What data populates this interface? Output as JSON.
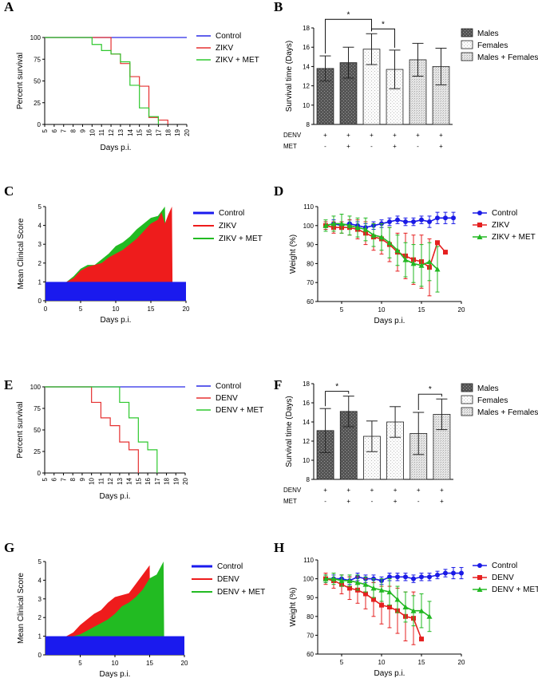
{
  "chart_data": [
    {
      "id": "A",
      "panel_label": "A",
      "type": "line",
      "step": true,
      "xlabel": "Days p.i.",
      "ylabel": "Percent survival",
      "xlim": [
        5,
        20
      ],
      "ylim": [
        0,
        100
      ],
      "xticks": [
        "5",
        "6",
        "7",
        "8",
        "9",
        "10",
        "11",
        "12",
        "13",
        "14",
        "15",
        "16",
        "17",
        "18",
        "19",
        "20"
      ],
      "yticks": [
        "0",
        "25",
        "50",
        "75",
        "100"
      ],
      "legend": "top-right",
      "series": [
        {
          "name": "Control",
          "color": "#2a2ae6",
          "marker": "none",
          "x": [
            5,
            20
          ],
          "y": [
            100,
            100
          ]
        },
        {
          "name": "ZIKV",
          "color": "#e53030",
          "marker": "none",
          "x": [
            5,
            12,
            13,
            14,
            15,
            16,
            17,
            18
          ],
          "y": [
            100,
            81,
            70,
            55,
            44,
            8,
            5,
            0
          ]
        },
        {
          "name": "ZIKV + MET",
          "color": "#2ec82e",
          "marker": "none",
          "x": [
            5,
            10,
            11,
            12,
            13,
            14,
            15,
            16,
            17
          ],
          "y": [
            100,
            92,
            85,
            81,
            72,
            45,
            19,
            9,
            0
          ]
        }
      ]
    },
    {
      "id": "B",
      "panel_label": "B",
      "type": "bar",
      "ylabel": "Survival time (Days)",
      "ylim": [
        8,
        18
      ],
      "yticks": [
        "8",
        "10",
        "12",
        "14",
        "16",
        "18"
      ],
      "values": [
        13.8,
        14.4,
        15.8,
        13.7,
        14.7,
        14.0
      ],
      "errors": [
        1.3,
        1.6,
        1.6,
        2.0,
        1.7,
        1.9
      ],
      "styles": [
        "males",
        "males",
        "females",
        "females",
        "both",
        "both"
      ],
      "legend": "top-right",
      "legend_items": [
        {
          "name": "Males",
          "style": "males"
        },
        {
          "name": "Females",
          "style": "females"
        },
        {
          "name": "Males + Females",
          "style": "both"
        }
      ],
      "table_rows": [
        {
          "label": "DENV",
          "values": [
            "+",
            "+",
            "+",
            "+",
            "+",
            "+"
          ]
        },
        {
          "label": "MET",
          "values": [
            "-",
            "+",
            "-",
            "+",
            "-",
            "+"
          ]
        }
      ],
      "significance": [
        {
          "from": 0,
          "to": 2,
          "label": "*",
          "level": 1
        },
        {
          "from": 2,
          "to": 3,
          "label": "*",
          "level": 0
        }
      ]
    },
    {
      "id": "C",
      "panel_label": "C",
      "type": "area",
      "xlabel": "Days p.i.",
      "ylabel": "Mean Clinical Score",
      "xlim": [
        0,
        20
      ],
      "ylim": [
        0,
        5
      ],
      "xticks": [
        "0",
        "5",
        "10",
        "15",
        "20"
      ],
      "yticks": [
        "0",
        "1",
        "2",
        "3",
        "4",
        "5"
      ],
      "legend": "top-right",
      "series": [
        {
          "name": "ZIKV + MET",
          "color": "#22bb22",
          "x": [
            3,
            4,
            5,
            6,
            7,
            8,
            9,
            10,
            11,
            12,
            13,
            14,
            15,
            16,
            17,
            17.3
          ],
          "y": [
            1,
            1.3,
            1.7,
            1.9,
            1.9,
            2.2,
            2.5,
            2.9,
            3.1,
            3.4,
            3.8,
            4.1,
            4.4,
            4.5,
            5,
            0
          ]
        },
        {
          "name": "ZIKV",
          "color": "#ee1c1c",
          "x": [
            3,
            4,
            5,
            6,
            7,
            8,
            9,
            10,
            11,
            12,
            13,
            14,
            15,
            16,
            16.5,
            17,
            17.5,
            18,
            18.1
          ],
          "y": [
            1,
            1.2,
            1.6,
            1.8,
            1.9,
            2.0,
            2.3,
            2.5,
            2.7,
            3.0,
            3.3,
            3.7,
            4.1,
            4.3,
            4.7,
            4.1,
            4.6,
            5,
            0
          ]
        },
        {
          "name": "Control",
          "color": "#1a1aee",
          "x": [
            0,
            20
          ],
          "y": [
            1,
            1
          ]
        }
      ]
    },
    {
      "id": "D",
      "panel_label": "D",
      "type": "line",
      "xlabel": "Days p.i.",
      "ylabel": "Weight (%)",
      "xlim": [
        2,
        20
      ],
      "ylim": [
        60,
        110
      ],
      "xticks": [
        "5",
        "10",
        "15",
        "20"
      ],
      "yticks": [
        "60",
        "70",
        "80",
        "90",
        "100",
        "110"
      ],
      "legend": "top-right",
      "series": [
        {
          "name": "Control",
          "color": "#1a1ae6",
          "marker": "circle",
          "x": [
            3,
            4,
            5,
            6,
            7,
            8,
            9,
            10,
            11,
            12,
            13,
            14,
            15,
            16,
            17,
            18,
            19
          ],
          "y": [
            100,
            101,
            100,
            101,
            100,
            99,
            100,
            101,
            102,
            103,
            102,
            102,
            103,
            102,
            104,
            104,
            104
          ],
          "err": [
            2,
            2,
            2,
            2,
            2,
            2,
            2,
            2,
            2,
            2,
            2,
            2,
            2,
            3,
            3,
            3,
            3
          ]
        },
        {
          "name": "ZIKV",
          "color": "#e52020",
          "marker": "square",
          "x": [
            3,
            4,
            5,
            6,
            7,
            8,
            9,
            10,
            11,
            12,
            13,
            14,
            15,
            16,
            17,
            18
          ],
          "y": [
            100,
            99,
            99,
            99,
            98,
            96,
            94,
            93,
            90,
            86,
            84,
            82,
            81,
            78,
            91,
            86
          ],
          "err": [
            2,
            3,
            3,
            4,
            5,
            6,
            7,
            8,
            9,
            10,
            12,
            13,
            14,
            15,
            0,
            0
          ]
        },
        {
          "name": "ZIKV + MET",
          "color": "#22b822",
          "marker": "triangle",
          "x": [
            3,
            4,
            5,
            6,
            7,
            8,
            9,
            10,
            11,
            12,
            13,
            14,
            15,
            16,
            17
          ],
          "y": [
            100,
            101,
            101,
            100,
            99,
            98,
            95,
            94,
            91,
            87,
            82,
            80,
            79,
            81,
            77
          ],
          "err": [
            3,
            4,
            5,
            5,
            5,
            6,
            6,
            7,
            8,
            8,
            9,
            10,
            11,
            10,
            12
          ]
        }
      ]
    },
    {
      "id": "E",
      "panel_label": "E",
      "type": "line",
      "step": true,
      "xlabel": "Days p.i.",
      "ylabel": "Percent survival",
      "xlim": [
        5,
        20
      ],
      "ylim": [
        0,
        100
      ],
      "xticks": [
        "5",
        "6",
        "7",
        "8",
        "9",
        "10",
        "11",
        "12",
        "13",
        "14",
        "15",
        "16",
        "17",
        "18",
        "19",
        "20"
      ],
      "yticks": [
        "0",
        "25",
        "50",
        "75",
        "100"
      ],
      "legend": "top-right",
      "series": [
        {
          "name": "Control",
          "color": "#2a2ae6",
          "marker": "none",
          "x": [
            5,
            20
          ],
          "y": [
            100,
            100
          ]
        },
        {
          "name": "DENV",
          "color": "#e53030",
          "marker": "none",
          "x": [
            5,
            10,
            11,
            12,
            13,
            14,
            15
          ],
          "y": [
            100,
            82,
            64,
            55,
            36,
            27,
            0
          ]
        },
        {
          "name": "DENV + MET",
          "color": "#2ec82e",
          "marker": "none",
          "x": [
            5,
            13,
            14,
            15,
            16,
            17
          ],
          "y": [
            100,
            82,
            64,
            36,
            27,
            0
          ]
        }
      ]
    },
    {
      "id": "F",
      "panel_label": "F",
      "type": "bar",
      "ylabel": "Survival time (Days)",
      "ylim": [
        8,
        18
      ],
      "yticks": [
        "8",
        "10",
        "12",
        "14",
        "16",
        "18"
      ],
      "values": [
        13.1,
        15.1,
        12.5,
        14.0,
        12.8,
        14.8
      ],
      "errors": [
        2.3,
        1.6,
        1.6,
        1.6,
        2.2,
        1.6
      ],
      "styles": [
        "males",
        "males",
        "females",
        "females",
        "both",
        "both"
      ],
      "legend": "top-right",
      "legend_items": [
        {
          "name": "Males",
          "style": "males"
        },
        {
          "name": "Females",
          "style": "females"
        },
        {
          "name": "Males + Females",
          "style": "both"
        }
      ],
      "table_rows": [
        {
          "label": "DENV",
          "values": [
            "+",
            "+",
            "+",
            "+",
            "+",
            "+"
          ]
        },
        {
          "label": "MET",
          "values": [
            "-",
            "+",
            "-",
            "+",
            "-",
            "+"
          ]
        }
      ],
      "significance": [
        {
          "from": 0,
          "to": 1,
          "label": "*",
          "level": 0
        },
        {
          "from": 4,
          "to": 5,
          "label": "*",
          "level": 0
        }
      ]
    },
    {
      "id": "G",
      "panel_label": "G",
      "type": "area",
      "xlabel": "Days p.i.",
      "ylabel": "Mean Clinical Score",
      "xlim": [
        0,
        20
      ],
      "ylim": [
        0,
        5
      ],
      "xticks": [
        "5",
        "10",
        "15",
        "20"
      ],
      "yticks": [
        "0",
        "1",
        "2",
        "3",
        "4",
        "5"
      ],
      "legend": "top-right",
      "series": [
        {
          "name": "DENV",
          "color": "#ee1c1c",
          "x": [
            3,
            4,
            5,
            6,
            7,
            8,
            9,
            10,
            11,
            12,
            13,
            14,
            15,
            15.1
          ],
          "y": [
            1,
            1.2,
            1.6,
            1.9,
            2.2,
            2.4,
            2.8,
            3.1,
            3.2,
            3.3,
            3.8,
            4.3,
            4.8,
            0
          ]
        },
        {
          "name": "DENV + MET",
          "color": "#22bb22",
          "x": [
            4,
            5,
            6,
            7,
            8,
            9,
            10,
            11,
            12,
            13,
            14,
            15,
            16,
            17,
            17.1
          ],
          "y": [
            1,
            1.1,
            1.3,
            1.5,
            1.7,
            1.9,
            2.2,
            2.6,
            2.8,
            3.1,
            3.5,
            4.1,
            4.3,
            5,
            0
          ]
        },
        {
          "name": "Control",
          "color": "#1a1aee",
          "x": [
            0,
            20
          ],
          "y": [
            1,
            1
          ]
        }
      ]
    },
    {
      "id": "H",
      "panel_label": "H",
      "type": "line",
      "xlabel": "Days p.i.",
      "ylabel": "Weight (%)",
      "xlim": [
        2,
        20
      ],
      "ylim": [
        60,
        110
      ],
      "xticks": [
        "5",
        "10",
        "15",
        "20"
      ],
      "yticks": [
        "60",
        "70",
        "80",
        "90",
        "100",
        "110"
      ],
      "legend": "top-right",
      "series": [
        {
          "name": "Control",
          "color": "#1a1ae6",
          "marker": "circle",
          "x": [
            3,
            4,
            5,
            6,
            7,
            8,
            9,
            10,
            11,
            12,
            13,
            14,
            15,
            16,
            17,
            18,
            19,
            20
          ],
          "y": [
            100,
            100,
            100,
            99,
            101,
            100,
            100,
            99,
            101,
            101,
            101,
            100,
            101,
            101,
            102,
            103,
            103,
            103
          ],
          "err": [
            2,
            2,
            2,
            2,
            2,
            2,
            2,
            2,
            2,
            2,
            2,
            2,
            2,
            2,
            2,
            2,
            3,
            3
          ]
        },
        {
          "name": "DENV",
          "color": "#e52020",
          "marker": "square",
          "x": [
            3,
            4,
            5,
            6,
            7,
            8,
            9,
            10,
            11,
            12,
            13,
            14,
            15
          ],
          "y": [
            100,
            99,
            97,
            95,
            94,
            92,
            89,
            86,
            85,
            83,
            80,
            79,
            68
          ],
          "err": [
            3,
            4,
            5,
            6,
            7,
            8,
            9,
            10,
            11,
            12,
            13,
            14,
            0
          ]
        },
        {
          "name": "DENV + MET",
          "color": "#22b822",
          "marker": "triangle",
          "x": [
            3,
            4,
            5,
            6,
            7,
            8,
            9,
            10,
            11,
            12,
            13,
            14,
            15,
            16
          ],
          "y": [
            100,
            100,
            99,
            99,
            98,
            97,
            95,
            94,
            93,
            89,
            85,
            83,
            83,
            80
          ],
          "err": [
            2,
            3,
            3,
            3,
            4,
            4,
            5,
            6,
            7,
            7,
            8,
            8,
            9,
            8
          ]
        }
      ]
    }
  ]
}
